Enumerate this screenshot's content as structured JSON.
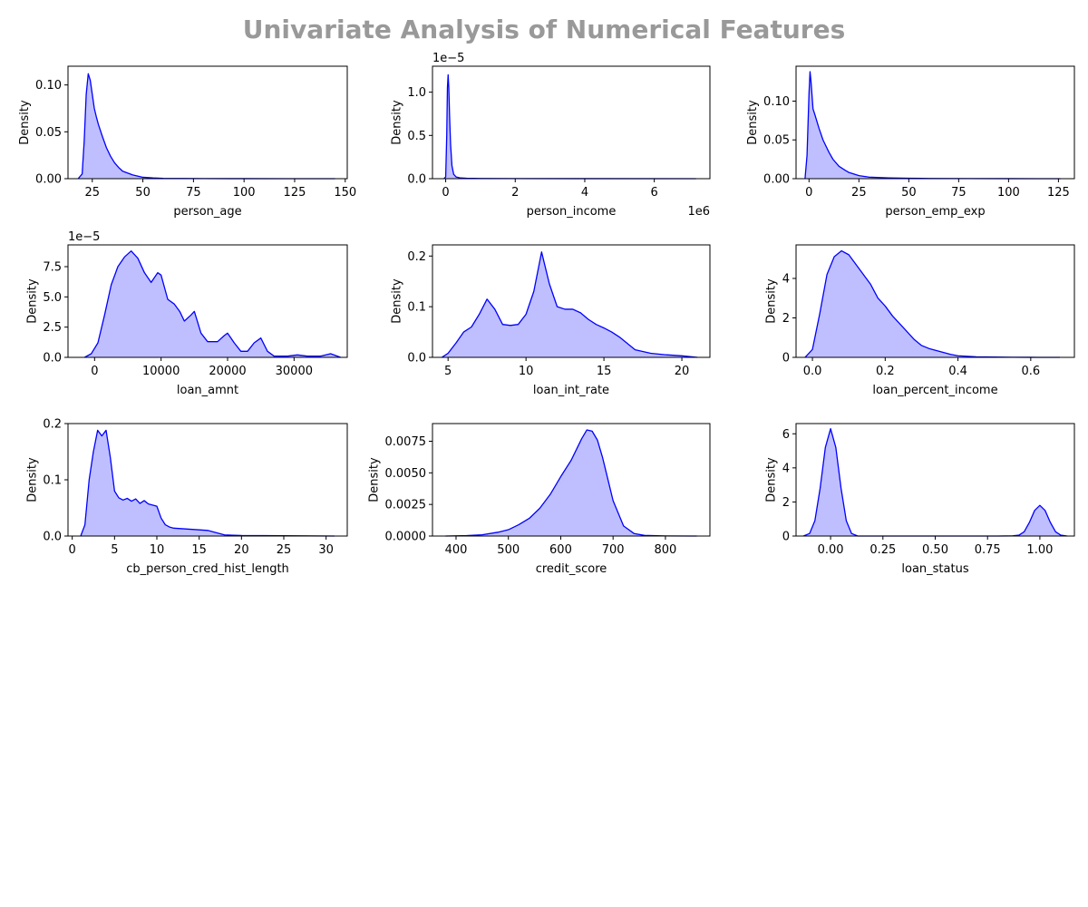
{
  "title": "Univariate Analysis of Numerical Features",
  "colors": {
    "line": "#0000ff",
    "fill": "#bfbfff",
    "title": "#999999",
    "axis": "#000000"
  },
  "chart_data": [
    {
      "type": "area",
      "xlabel": "person_age",
      "ylabel": "Density",
      "xlim": [
        13,
        151
      ],
      "ylim": [
        0,
        0.12
      ],
      "xticks": [
        25,
        50,
        75,
        100,
        125,
        150
      ],
      "xtick_labels": [
        "25",
        "50",
        "75",
        "100",
        "125",
        "150"
      ],
      "yticks": [
        0,
        0.05,
        0.1
      ],
      "ytick_labels": [
        "0.00",
        "0.05",
        "0.10"
      ],
      "x_offset_label": "",
      "y_offset_label": "",
      "x": [
        18,
        20,
        21,
        22,
        23,
        24,
        25,
        26,
        27,
        28,
        30,
        32,
        34,
        36,
        38,
        40,
        45,
        50,
        55,
        60,
        70,
        80,
        100,
        120,
        145
      ],
      "y": [
        0,
        0.005,
        0.04,
        0.09,
        0.112,
        0.105,
        0.09,
        0.075,
        0.066,
        0.058,
        0.045,
        0.033,
        0.024,
        0.017,
        0.012,
        0.008,
        0.004,
        0.0015,
        0.0008,
        0.0004,
        0.0002,
        0.0001,
        5e-05,
        2e-05,
        0
      ]
    },
    {
      "type": "area",
      "xlabel": "person_income",
      "ylabel": "Density",
      "xlim": [
        -380000,
        7600000
      ],
      "ylim": [
        0,
        1.3
      ],
      "xticks": [
        0,
        2000000,
        4000000,
        6000000
      ],
      "xtick_labels": [
        "0",
        "2",
        "4",
        "6"
      ],
      "yticks": [
        0,
        0.5,
        1.0
      ],
      "ytick_labels": [
        "0.0",
        "0.5",
        "1.0"
      ],
      "x_offset_label": "1e6",
      "y_offset_label": "1e−5",
      "x": [
        -50000,
        0,
        30000,
        50000,
        70000,
        90000,
        110000,
        140000,
        180000,
        230000,
        300000,
        400000,
        600000,
        1000000,
        2000000,
        4000000,
        7200000
      ],
      "y": [
        0,
        0.02,
        0.5,
        1.05,
        1.2,
        1.05,
        0.75,
        0.4,
        0.15,
        0.05,
        0.02,
        0.01,
        0.005,
        0.002,
        0.001,
        0.0005,
        0
      ]
    },
    {
      "type": "area",
      "xlabel": "person_emp_exp",
      "ylabel": "Density",
      "xlim": [
        -6.5,
        133
      ],
      "ylim": [
        0,
        0.145
      ],
      "xticks": [
        0,
        25,
        50,
        75,
        100,
        125
      ],
      "xtick_labels": [
        "0",
        "25",
        "50",
        "75",
        "100",
        "125"
      ],
      "yticks": [
        0,
        0.05,
        0.1
      ],
      "ytick_labels": [
        "0.00",
        "0.05",
        "0.10"
      ],
      "x_offset_label": "",
      "y_offset_label": "",
      "x": [
        -2,
        -1,
        0,
        0.5,
        1,
        2,
        3,
        5,
        7,
        10,
        12,
        15,
        18,
        20,
        25,
        30,
        40,
        50,
        60,
        80,
        100,
        126
      ],
      "y": [
        0,
        0.03,
        0.11,
        0.138,
        0.125,
        0.09,
        0.082,
        0.065,
        0.05,
        0.034,
        0.025,
        0.016,
        0.011,
        0.008,
        0.004,
        0.002,
        0.001,
        0.0005,
        0.0003,
        0.0001,
        5e-05,
        0
      ]
    },
    {
      "type": "area",
      "xlabel": "loan_amnt",
      "ylabel": "Density",
      "xlim": [
        -4000,
        38000
      ],
      "ylim": [
        0,
        9.3e-05
      ],
      "xticks": [
        0,
        10000,
        20000,
        30000
      ],
      "xtick_labels": [
        "0",
        "10000",
        "20000",
        "30000"
      ],
      "yticks": [
        0,
        2.5e-05,
        5e-05,
        7.5e-05
      ],
      "ytick_labels": [
        "0.0",
        "2.5",
        "5.0",
        "7.5"
      ],
      "x_offset_label": "",
      "y_offset_label": "1e−5",
      "x": [
        -1500,
        -500,
        500,
        1500,
        2500,
        3500,
        4500,
        5500,
        6500,
        7500,
        8500,
        9500,
        10000,
        11000,
        12000,
        12800,
        13500,
        14500,
        15000,
        16000,
        17000,
        18500,
        19500,
        20000,
        21000,
        22000,
        23000,
        24000,
        25000,
        26000,
        27000,
        29000,
        30500,
        32000,
        34000,
        35500,
        37000
      ],
      "y": [
        0,
        3e-06,
        1.2e-05,
        3.5e-05,
        6e-05,
        7.5e-05,
        8.3e-05,
        8.8e-05,
        8.2e-05,
        7e-05,
        6.2e-05,
        7e-05,
        6.8e-05,
        4.8e-05,
        4.4e-05,
        3.8e-05,
        3e-05,
        3.5e-05,
        3.8e-05,
        2e-05,
        1.3e-05,
        1.3e-05,
        1.8e-05,
        2e-05,
        1.2e-05,
        5e-06,
        5e-06,
        1.2e-05,
        1.6e-05,
        5e-06,
        1e-06,
        1e-06,
        2e-06,
        1e-06,
        1e-06,
        3e-06,
        0
      ]
    },
    {
      "type": "area",
      "xlabel": "loan_int_rate",
      "ylabel": "Density",
      "xlim": [
        4,
        21.8
      ],
      "ylim": [
        0,
        0.222
      ],
      "xticks": [
        5,
        10,
        15,
        20
      ],
      "xtick_labels": [
        "5",
        "10",
        "15",
        "20"
      ],
      "yticks": [
        0,
        0.1,
        0.2
      ],
      "ytick_labels": [
        "0.0",
        "0.1",
        "0.2"
      ],
      "x_offset_label": "",
      "y_offset_label": "",
      "x": [
        4.6,
        5.0,
        5.5,
        6.0,
        6.5,
        7.0,
        7.5,
        8.0,
        8.5,
        9.0,
        9.5,
        10.0,
        10.5,
        11.0,
        11.5,
        12.0,
        12.5,
        13.0,
        13.5,
        14.0,
        14.5,
        15.0,
        15.5,
        16.0,
        17.0,
        18.0,
        19.0,
        20.0,
        21.0
      ],
      "y": [
        0,
        0.008,
        0.028,
        0.05,
        0.06,
        0.085,
        0.115,
        0.095,
        0.065,
        0.063,
        0.065,
        0.085,
        0.13,
        0.208,
        0.145,
        0.1,
        0.095,
        0.095,
        0.088,
        0.075,
        0.065,
        0.058,
        0.05,
        0.04,
        0.015,
        0.008,
        0.005,
        0.003,
        0
      ]
    },
    {
      "type": "area",
      "xlabel": "loan_percent_income",
      "ylabel": "Density",
      "xlim": [
        -0.045,
        0.72
      ],
      "ylim": [
        0,
        5.7
      ],
      "xticks": [
        0,
        0.2,
        0.4,
        0.6
      ],
      "xtick_labels": [
        "0.0",
        "0.2",
        "0.4",
        "0.6"
      ],
      "yticks": [
        0,
        2,
        4
      ],
      "ytick_labels": [
        "0",
        "2",
        "4"
      ],
      "x_offset_label": "",
      "y_offset_label": "",
      "x": [
        -0.02,
        0,
        0.02,
        0.04,
        0.06,
        0.08,
        0.1,
        0.12,
        0.14,
        0.16,
        0.18,
        0.2,
        0.22,
        0.25,
        0.28,
        0.3,
        0.32,
        0.35,
        0.38,
        0.4,
        0.45,
        0.5,
        0.55,
        0.6,
        0.68
      ],
      "y": [
        0,
        0.4,
        2.2,
        4.2,
        5.1,
        5.4,
        5.2,
        4.7,
        4.2,
        3.7,
        3.0,
        2.6,
        2.1,
        1.5,
        0.9,
        0.6,
        0.45,
        0.3,
        0.15,
        0.08,
        0.03,
        0.015,
        0.005,
        0.002,
        0
      ]
    },
    {
      "type": "area",
      "xlabel": "cb_person_cred_hist_length",
      "ylabel": "Density",
      "xlim": [
        -0.5,
        32.5
      ],
      "ylim": [
        0,
        0.2
      ],
      "xticks": [
        0,
        5,
        10,
        15,
        20,
        25,
        30
      ],
      "xtick_labels": [
        "0",
        "5",
        "10",
        "15",
        "20",
        "25",
        "30"
      ],
      "yticks": [
        0,
        0.1,
        0.2
      ],
      "ytick_labels": [
        "0.0",
        "0.1",
        "0.2"
      ],
      "x_offset_label": "",
      "y_offset_label": "",
      "x": [
        1,
        1.5,
        2,
        2.5,
        3,
        3.5,
        4,
        4.5,
        5,
        5.5,
        6,
        6.5,
        7,
        7.5,
        8,
        8.5,
        9,
        9.5,
        10,
        10.5,
        11,
        11.5,
        12,
        13,
        14,
        15,
        16,
        17,
        18,
        20,
        25,
        31
      ],
      "y": [
        0,
        0.02,
        0.1,
        0.15,
        0.188,
        0.178,
        0.188,
        0.14,
        0.08,
        0.068,
        0.064,
        0.067,
        0.062,
        0.066,
        0.058,
        0.063,
        0.057,
        0.055,
        0.053,
        0.032,
        0.02,
        0.016,
        0.014,
        0.013,
        0.012,
        0.011,
        0.01,
        0.006,
        0.002,
        0.001,
        0.0005,
        0
      ]
    },
    {
      "type": "area",
      "xlabel": "credit_score",
      "ylabel": "Density",
      "xlim": [
        355,
        885
      ],
      "ylim": [
        0,
        0.0089
      ],
      "xticks": [
        400,
        500,
        600,
        700,
        800
      ],
      "xtick_labels": [
        "400",
        "500",
        "600",
        "700",
        "800"
      ],
      "yticks": [
        0,
        0.0025,
        0.005,
        0.0075
      ],
      "ytick_labels": [
        "0.0000",
        "0.0025",
        "0.0050",
        "0.0075"
      ],
      "x_offset_label": "",
      "y_offset_label": "",
      "x": [
        380,
        420,
        450,
        480,
        500,
        520,
        540,
        560,
        580,
        600,
        620,
        640,
        650,
        660,
        670,
        680,
        690,
        700,
        720,
        740,
        760,
        800,
        860
      ],
      "y": [
        0,
        3e-05,
        0.0001,
        0.0003,
        0.0005,
        0.0009,
        0.0014,
        0.0022,
        0.0033,
        0.0047,
        0.006,
        0.0077,
        0.0084,
        0.0083,
        0.0076,
        0.0062,
        0.0045,
        0.0028,
        0.0008,
        0.0002,
        5e-05,
        1e-05,
        0
      ]
    },
    {
      "type": "area",
      "xlabel": "loan_status",
      "ylabel": "Density",
      "xlim": [
        -0.165,
        1.165
      ],
      "ylim": [
        0,
        6.6
      ],
      "xticks": [
        0,
        0.25,
        0.5,
        0.75,
        1.0
      ],
      "xtick_labels": [
        "0.00",
        "0.25",
        "0.50",
        "0.75",
        "1.00"
      ],
      "yticks": [
        0,
        2,
        4,
        6
      ],
      "ytick_labels": [
        "0",
        "2",
        "4",
        "6"
      ],
      "x_offset_label": "",
      "y_offset_label": "",
      "x": [
        -0.13,
        -0.1,
        -0.075,
        -0.05,
        -0.025,
        0,
        0.025,
        0.05,
        0.075,
        0.1,
        0.13,
        0.2,
        0.5,
        0.8,
        0.87,
        0.9,
        0.925,
        0.95,
        0.975,
        1.0,
        1.025,
        1.05,
        1.075,
        1.1,
        1.13
      ],
      "y": [
        0,
        0.15,
        0.9,
        2.8,
        5.2,
        6.3,
        5.2,
        2.8,
        0.9,
        0.15,
        0,
        0,
        0,
        0,
        0.01,
        0.05,
        0.25,
        0.8,
        1.5,
        1.8,
        1.5,
        0.8,
        0.25,
        0.05,
        0
      ]
    }
  ]
}
